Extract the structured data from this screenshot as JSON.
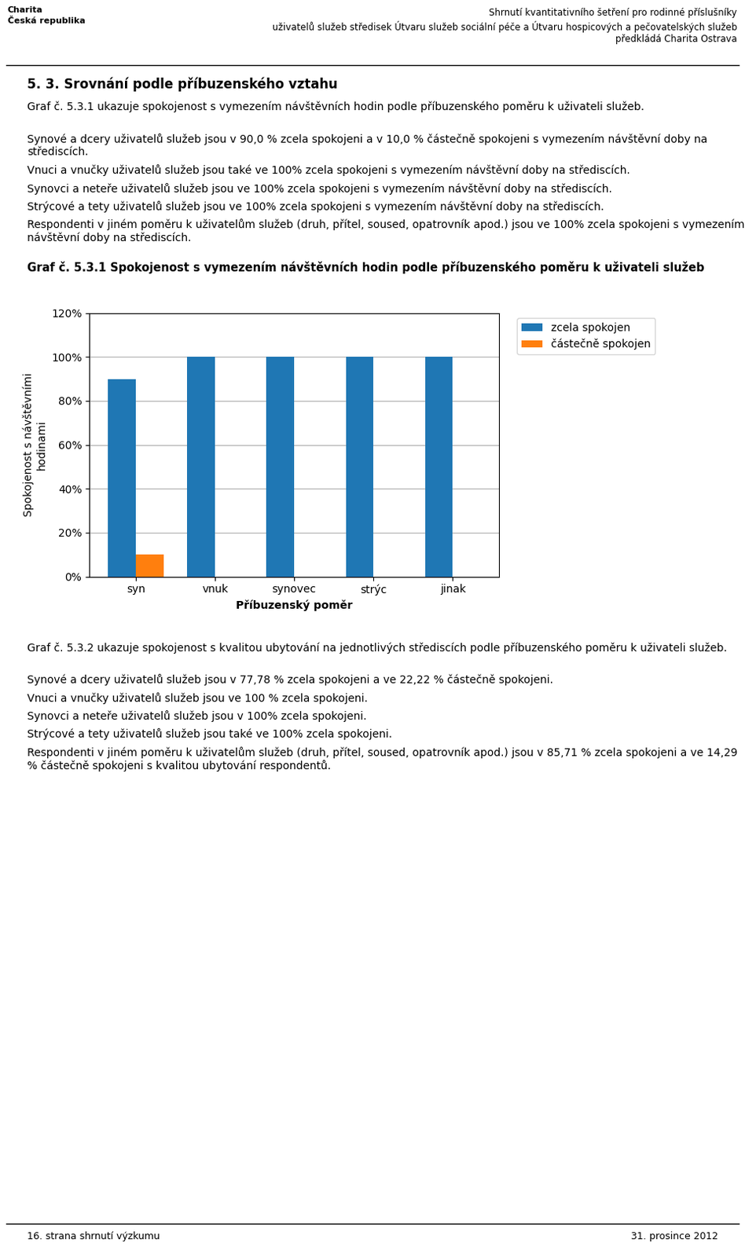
{
  "chart_data": {
    "type": "bar",
    "title": "Graf č. 5.3.1 Spokojenost s vymezením návštěvních hodin podle příbuzenského poměru k uživateli služeb",
    "categories": [
      "syn",
      "vnuk",
      "synovec",
      "strýc",
      "jinak"
    ],
    "series": [
      {
        "name": "zcela spokojen",
        "values": [
          90,
          100,
          100,
          100,
          100
        ]
      },
      {
        "name": "částečně spokojen",
        "values": [
          10,
          0,
          0,
          0,
          0
        ]
      }
    ],
    "xlabel": "Příbuzenský poměr",
    "ylabel": "Spokojenost s návštěvními\nhodinami",
    "ylim": [
      0,
      120
    ],
    "yticks": [
      {
        "value": 0,
        "label": "0%"
      },
      {
        "value": 20,
        "label": "20%"
      },
      {
        "value": 40,
        "label": "40%"
      },
      {
        "value": 60,
        "label": "60%"
      },
      {
        "value": 80,
        "label": "80%"
      },
      {
        "value": 100,
        "label": "100%"
      },
      {
        "value": 120,
        "label": "120%"
      }
    ],
    "grid": true,
    "legend": "upper left"
  },
  "logo_text": "Charita\nČeská republika",
  "header": [
    "Shrnutí kvantitativního šetření pro rodinné příslušníky",
    "uživatelů služeb středisek Útvaru služeb sociální péče a Útvaru hospicových a pečovatelských služeb",
    "předkládá Charita Ostrava"
  ],
  "section_title": "5. 3. Srovnání podle příbuzenského vztahu",
  "text_before": [
    "Graf č. 5.3.1 ukazuje spokojenost s vymezením návštěvních hodin podle příbuzenského poměru k uživateli služeb.",
    "Synové a dcery uživatelů služeb jsou v 90,0 % zcela spokojeni a v 10,0 % částečně spokojeni s vymezením návštěvní doby na střediscích.",
    "Vnuci a vnučky uživatelů služeb jsou také ve 100% zcela spokojeni s vymezením návštěvní doby na střediscích.",
    "Synovci a neteře uživatelů služeb jsou ve 100% zcela spokojeni s vymezením návštěvní doby na střediscích.",
    "Strýcové a tety uživatelů služeb jsou ve 100% zcela spokojeni s vymezením návštěvní doby na střediscích.",
    "Respondenti v jiném poměru k uživatelům služeb (druh, přítel, soused, opatrovník apod.) jsou ve 100% zcela spokojeni s vymezením návštěvní doby na střediscích."
  ],
  "text_after": [
    "Graf č. 5.3.2 ukazuje spokojenost s kvalitou ubytování na jednotlivých střediscích podle příbuzenského poměru k uživateli služeb.",
    "Synové a dcery uživatelů služeb jsou v 77,78 % zcela spokojeni a ve 22,22 % částečně spokojeni.",
    "Vnuci a vnučky uživatelů služeb jsou ve 100 % zcela spokojeni.",
    "Synovci a neteře uživatelů služeb jsou v 100% zcela spokojeni.",
    "Strýcové a tety uživatelů služeb jsou také ve 100% zcela spokojeni.",
    "Respondenti v jiném poměru k uživatelům služeb (druh, přítel, soused, opatrovník apod.) jsou v 85,71 % zcela spokojeni a ve 14,29 % částečně spokojeni s kvalitou ubytování respondentů."
  ],
  "footer": [
    "16. strana shrnutí výzkumu",
    "31. prosince 2012"
  ]
}
